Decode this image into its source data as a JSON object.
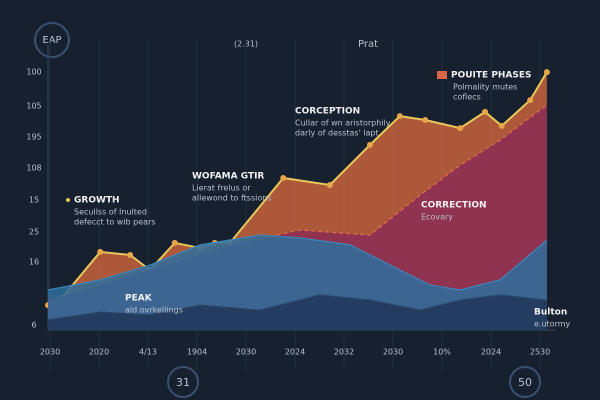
{
  "header": {
    "left": "EAP",
    "center": "(2.31)",
    "right": "Prat"
  },
  "footer": {
    "left": "31",
    "right": "50"
  },
  "chart_data": {
    "type": "area",
    "xlim": [
      0,
      100
    ],
    "ylim": [
      0,
      100
    ],
    "y_axis_labels": [
      "100",
      "105",
      "195",
      "108",
      "15",
      "25",
      "16",
      "6"
    ],
    "x_axis_labels": [
      "2030",
      "2020",
      "4/13",
      "1904",
      "2030",
      "2024",
      "2032",
      "2030",
      "10%",
      "2024",
      "2530"
    ],
    "series": [
      {
        "color": "#e8c85a",
        "fill": "#c9633c",
        "x": [
          0,
          2.4,
          10.3,
          16.2,
          20.1,
          25.0,
          30.0,
          32.9,
          35.9,
          46.4,
          55.6,
          63.5,
          69.4,
          74.4,
          81.3,
          86.2,
          89.5,
          95.1,
          98.4
        ],
        "values": [
          8.9,
          10.7,
          27.9,
          26.8,
          21.4,
          31.1,
          29.3,
          31.1,
          31.1,
          54.3,
          51.8,
          66.1,
          76.4,
          75.0,
          72.1,
          77.9,
          72.9,
          82.1,
          92.1
        ]
      },
      {
        "color": "#e0704a",
        "fill": "#8a2d55",
        "x": [
          0,
          35.9,
          49.7,
          63.5,
          73.4,
          81.3,
          89.2,
          98.4
        ],
        "values": [
          10.7,
          30.4,
          35.7,
          33.9,
          48.2,
          58.9,
          67.9,
          80.4
        ]
      },
      {
        "color": "#3d86b8",
        "fill": "#2e6f9e",
        "x": [
          0,
          10.3,
          20.1,
          30.0,
          41.8,
          49.7,
          59.6,
          69.4,
          75.3,
          81.3,
          89.2,
          98.4
        ],
        "values": [
          14.3,
          17.9,
          23.2,
          30.4,
          33.9,
          32.9,
          30.4,
          21.4,
          16.1,
          14.3,
          17.9,
          32.1
        ]
      },
      {
        "color": "#2a4668",
        "fill": "#1e3556",
        "x": [
          0,
          10.3,
          20.1,
          30.0,
          41.8,
          53.6,
          63.5,
          73.4,
          81.3,
          89.2,
          98.4
        ],
        "values": [
          3.6,
          6.4,
          5.4,
          8.9,
          7.1,
          12.5,
          10.7,
          7.1,
          10.7,
          12.5,
          10.7
        ]
      }
    ],
    "annotations": [
      {
        "title": "GROWTH",
        "lines": [
          "Secullss of Inulted",
          "defecct to wib pears"
        ]
      },
      {
        "title": "WOFAMA GTIR",
        "lines": [
          "Lierat frelus or",
          "allewond to ftssions"
        ]
      },
      {
        "title": "CORCEPTION",
        "lines": [
          "Cullar of wn aristorphily",
          "darly of desstas' lapt"
        ]
      },
      {
        "title": "POUITE PHASES",
        "lines": [
          "Polmality mutes",
          "coflecs"
        ]
      },
      {
        "title": "CORRECTION",
        "lines": [
          "Ecovary"
        ]
      },
      {
        "title": "PEAK",
        "lines": [
          "ald ovrkellings"
        ]
      },
      {
        "title": "Bulton",
        "lines": [
          "e.utormy"
        ]
      }
    ]
  }
}
